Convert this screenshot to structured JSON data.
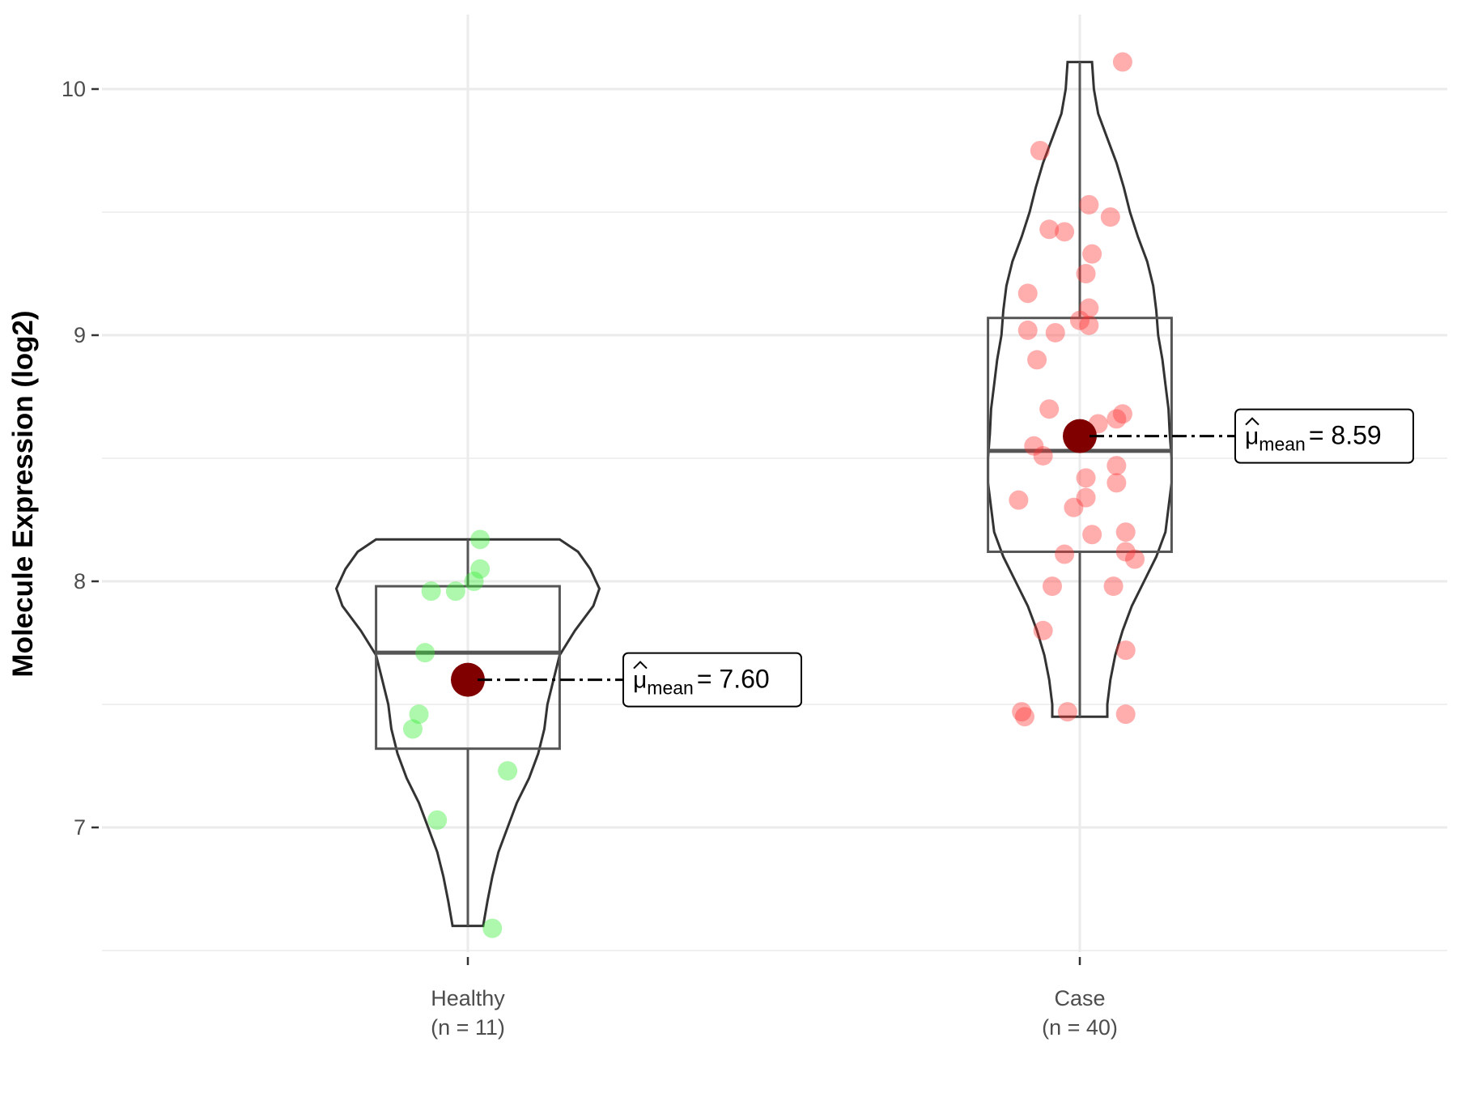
{
  "chart_data": {
    "type": "violin",
    "title": "",
    "xlabel": "",
    "ylabel": "Molecule Expression (log2)",
    "ylim": [
      6.5,
      10.3
    ],
    "yticks": [
      7,
      8,
      9,
      10
    ],
    "yticks_text": [
      "7",
      "8",
      "9",
      "10"
    ],
    "grid": true,
    "legend": "none",
    "groups": [
      {
        "name": "Healthy",
        "n_label": "(n = 11)",
        "color": "#33ee33",
        "box": {
          "q1": 7.32,
          "median": 7.71,
          "q3": 7.98,
          "whisker_low": 6.6,
          "whisker_high": 8.17
        },
        "violin_range": [
          6.6,
          8.17
        ],
        "mean": 7.6,
        "mean_label_prefix": "μ",
        "mean_label_sub": "mean",
        "mean_label_value": "= 7.60",
        "points": [
          {
            "dx": 0.02,
            "y": 8.17
          },
          {
            "dx": 0.02,
            "y": 8.05
          },
          {
            "dx": 0.01,
            "y": 8.0
          },
          {
            "dx": -0.02,
            "y": 7.96
          },
          {
            "dx": -0.06,
            "y": 7.96
          },
          {
            "dx": -0.07,
            "y": 7.71
          },
          {
            "dx": -0.08,
            "y": 7.46
          },
          {
            "dx": -0.09,
            "y": 7.4
          },
          {
            "dx": 0.065,
            "y": 7.23
          },
          {
            "dx": -0.05,
            "y": 7.03
          },
          {
            "dx": 0.04,
            "y": 6.59
          }
        ]
      },
      {
        "name": "Case",
        "n_label": "(n = 40)",
        "color": "#ff3333",
        "box": {
          "q1": 8.12,
          "median": 8.53,
          "q3": 9.07,
          "whisker_low": 7.45,
          "whisker_high": 10.11
        },
        "violin_range": [
          7.45,
          10.11
        ],
        "mean": 8.59,
        "mean_label_prefix": "μ",
        "mean_label_sub": "mean",
        "mean_label_value": "= 8.59",
        "points": [
          {
            "dx": 0.07,
            "y": 10.11
          },
          {
            "dx": -0.065,
            "y": 9.75
          },
          {
            "dx": 0.015,
            "y": 9.53
          },
          {
            "dx": 0.05,
            "y": 9.48
          },
          {
            "dx": -0.025,
            "y": 9.42
          },
          {
            "dx": -0.05,
            "y": 9.43
          },
          {
            "dx": 0.02,
            "y": 9.33
          },
          {
            "dx": 0.01,
            "y": 9.25
          },
          {
            "dx": -0.085,
            "y": 9.17
          },
          {
            "dx": 0.015,
            "y": 9.11
          },
          {
            "dx": 0.0,
            "y": 9.06
          },
          {
            "dx": 0.015,
            "y": 9.04
          },
          {
            "dx": -0.085,
            "y": 9.02
          },
          {
            "dx": -0.04,
            "y": 9.01
          },
          {
            "dx": -0.07,
            "y": 8.9
          },
          {
            "dx": -0.05,
            "y": 8.7
          },
          {
            "dx": 0.07,
            "y": 8.68
          },
          {
            "dx": 0.06,
            "y": 8.66
          },
          {
            "dx": 0.03,
            "y": 8.64
          },
          {
            "dx": -0.075,
            "y": 8.55
          },
          {
            "dx": -0.06,
            "y": 8.51
          },
          {
            "dx": 0.06,
            "y": 8.47
          },
          {
            "dx": 0.01,
            "y": 8.42
          },
          {
            "dx": 0.06,
            "y": 8.4
          },
          {
            "dx": 0.01,
            "y": 8.34
          },
          {
            "dx": -0.1,
            "y": 8.33
          },
          {
            "dx": -0.01,
            "y": 8.3
          },
          {
            "dx": 0.075,
            "y": 8.2
          },
          {
            "dx": 0.02,
            "y": 8.19
          },
          {
            "dx": 0.075,
            "y": 8.12
          },
          {
            "dx": -0.025,
            "y": 8.11
          },
          {
            "dx": 0.09,
            "y": 8.09
          },
          {
            "dx": -0.045,
            "y": 7.98
          },
          {
            "dx": 0.055,
            "y": 7.98
          },
          {
            "dx": -0.06,
            "y": 7.8
          },
          {
            "dx": 0.075,
            "y": 7.72
          },
          {
            "dx": -0.095,
            "y": 7.47
          },
          {
            "dx": -0.09,
            "y": 7.45
          },
          {
            "dx": -0.02,
            "y": 7.47
          },
          {
            "dx": 0.075,
            "y": 7.46
          }
        ]
      }
    ]
  },
  "colors": {
    "grid": "#ebebeb",
    "outline": "#333333",
    "box": "#555555",
    "mean_point": "#800000",
    "axis_tick": "#333333"
  }
}
